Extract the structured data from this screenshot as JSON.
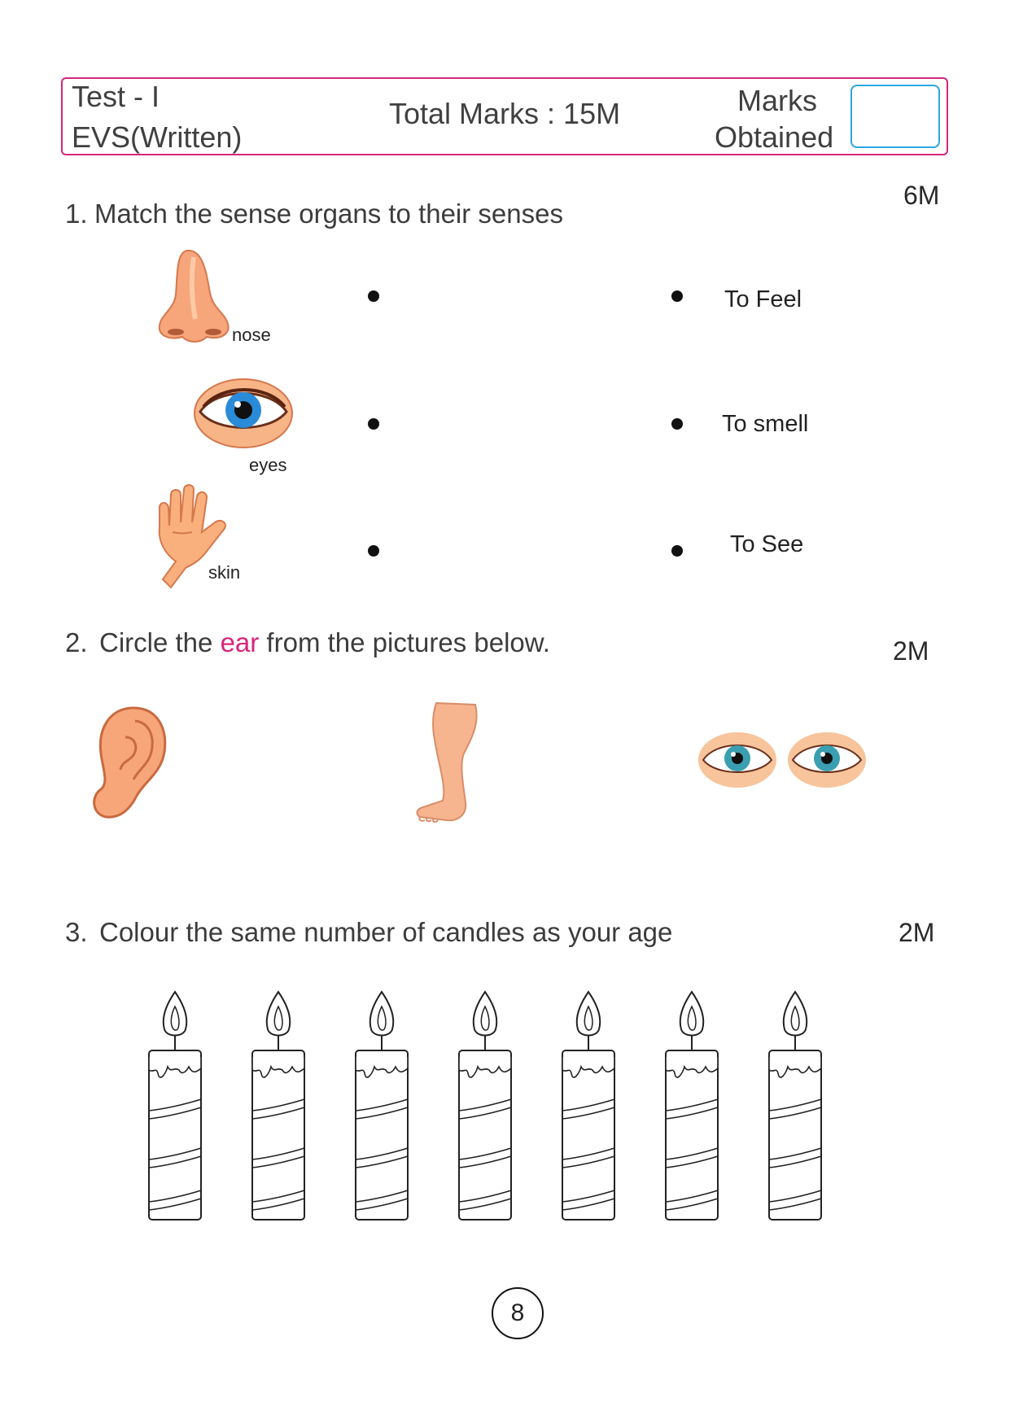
{
  "header": {
    "test_line": "Test - I",
    "subject_line": "EVS(Written)",
    "total_marks": "Total Marks : 15M",
    "marks_label_1": "Marks",
    "marks_label_2": "Obtained",
    "accent_color": "#d6267b",
    "marks_box_color": "#2aa6e0"
  },
  "q1": {
    "number": "1.",
    "text": "Match the sense organs to their senses",
    "marks": "6M",
    "organs": [
      {
        "label": "nose",
        "icon": "nose-icon"
      },
      {
        "label": "eyes",
        "icon": "eye-icon"
      },
      {
        "label": "skin",
        "icon": "hand-icon"
      }
    ],
    "senses": [
      "To Feel",
      "To smell",
      "To See"
    ]
  },
  "q2": {
    "number": "2.",
    "text_before": "Circle the ",
    "highlight": "ear",
    "text_after": " from the pictures below.",
    "marks": "2M",
    "pictures": [
      "ear-icon",
      "leg-icon",
      "eyes-pair-icon"
    ]
  },
  "q3": {
    "number": "3.",
    "text": "Colour the same number of candles as your age",
    "marks": "2M",
    "candle_count": 7
  },
  "page_number": "8"
}
